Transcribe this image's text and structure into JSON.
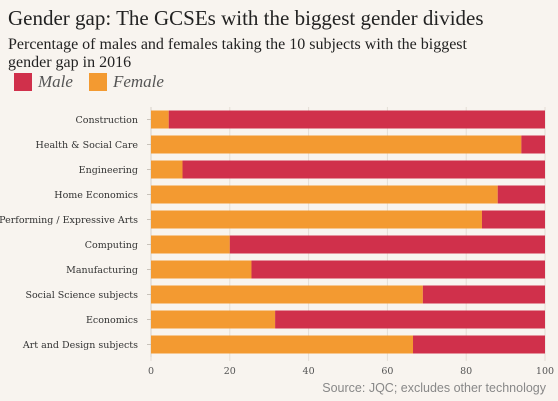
{
  "title": "Gender gap: The GCSEs with the biggest gender divides",
  "subtitle": "Percentage of males and females taking the 10 subjects with the biggest gender gap in 2016",
  "source": "Source: JQC; excludes other technology",
  "colors": {
    "male": "#d0304b",
    "female": "#f39a31",
    "background": "#f8f4ef"
  },
  "chart_data": {
    "type": "bar",
    "orientation": "horizontal",
    "stacked": true,
    "categories": [
      "Construction",
      "Health & Social Care",
      "Engineering",
      "Home Economics",
      "Performing / Expressive Arts",
      "Computing",
      "Manufacturing",
      "Social Science subjects",
      "Economics",
      "Art and Design subjects"
    ],
    "series": [
      {
        "name": "Female",
        "color": "#f39a31",
        "values": [
          4.5,
          94,
          8,
          88,
          84,
          20,
          25.5,
          69,
          31.5,
          66.5
        ]
      },
      {
        "name": "Male",
        "color": "#d0304b",
        "values": [
          95.5,
          6,
          92,
          12,
          16,
          80,
          74.5,
          31,
          68.5,
          33.5
        ]
      }
    ],
    "legend": [
      "Male",
      "Female"
    ],
    "legend_position": "top-left",
    "xlim": [
      0,
      100
    ],
    "xticks": [
      0,
      20,
      40,
      60,
      80,
      100
    ],
    "grid": true
  }
}
